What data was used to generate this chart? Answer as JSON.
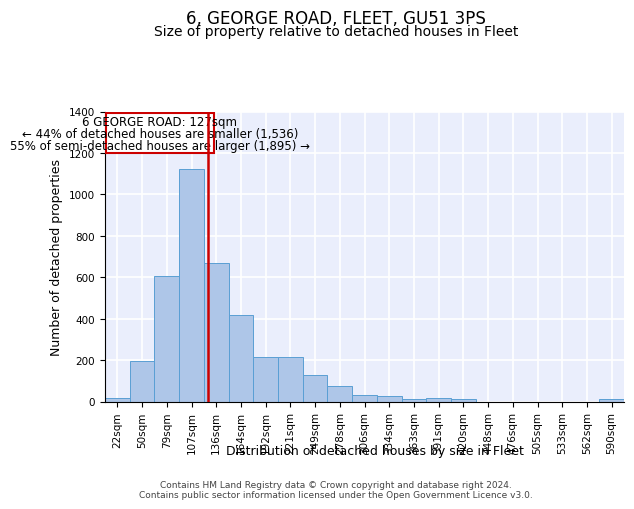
{
  "title": "6, GEORGE ROAD, FLEET, GU51 3PS",
  "subtitle": "Size of property relative to detached houses in Fleet",
  "xlabel": "Distribution of detached houses by size in Fleet",
  "ylabel": "Number of detached properties",
  "bar_labels": [
    "22sqm",
    "50sqm",
    "79sqm",
    "107sqm",
    "136sqm",
    "164sqm",
    "192sqm",
    "221sqm",
    "249sqm",
    "278sqm",
    "306sqm",
    "334sqm",
    "363sqm",
    "391sqm",
    "420sqm",
    "448sqm",
    "476sqm",
    "505sqm",
    "533sqm",
    "562sqm",
    "590sqm"
  ],
  "bar_values": [
    15,
    195,
    607,
    1120,
    668,
    420,
    215,
    215,
    130,
    73,
    33,
    27,
    10,
    15,
    10,
    0,
    0,
    0,
    0,
    0,
    10
  ],
  "bar_color": "#aec6e8",
  "bar_edgecolor": "#5a9fd4",
  "background_color": "#eaeefc",
  "grid_color": "#ffffff",
  "vline_color": "#cc0000",
  "annotation_text_line1": "6 GEORGE ROAD: 127sqm",
  "annotation_text_line2": "← 44% of detached houses are smaller (1,536)",
  "annotation_text_line3": "55% of semi-detached houses are larger (1,895) →",
  "annotation_box_edgecolor": "#cc0000",
  "ylim": [
    0,
    1400
  ],
  "yticks": [
    0,
    200,
    400,
    600,
    800,
    1000,
    1200,
    1400
  ],
  "footer": "Contains HM Land Registry data © Crown copyright and database right 2024.\nContains public sector information licensed under the Open Government Licence v3.0.",
  "title_fontsize": 12,
  "subtitle_fontsize": 10,
  "axis_label_fontsize": 9,
  "tick_fontsize": 7.5,
  "annotation_fontsize": 8.5,
  "footer_fontsize": 6.5
}
